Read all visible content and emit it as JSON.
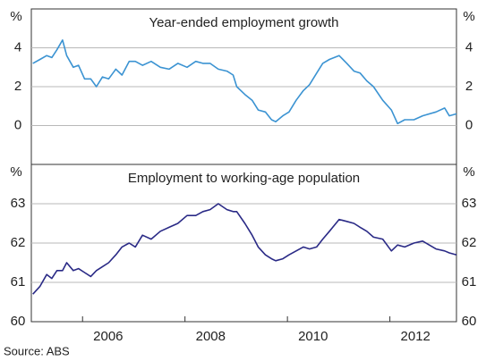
{
  "chart_data": [
    {
      "type": "line",
      "title": "Year-ended employment growth",
      "ylabel": "%",
      "color": "#3b93d2",
      "grid": true,
      "ylim": [
        -2,
        6
      ],
      "yticks": [
        0,
        2,
        4
      ],
      "xlim": [
        2005,
        2013.3
      ],
      "x": [
        2005.03,
        2005.17,
        2005.3,
        2005.4,
        2005.5,
        2005.61,
        2005.69,
        2005.82,
        2005.92,
        2006.04,
        2006.16,
        2006.27,
        2006.39,
        2006.51,
        2006.65,
        2006.77,
        2006.91,
        2007.03,
        2007.17,
        2007.34,
        2007.52,
        2007.69,
        2007.86,
        2008.04,
        2008.21,
        2008.35,
        2008.49,
        2008.65,
        2008.82,
        2008.94,
        2009.01,
        2009.17,
        2009.31,
        2009.43,
        2009.57,
        2009.69,
        2009.77,
        2009.91,
        2010.03,
        2010.17,
        2010.31,
        2010.43,
        2010.57,
        2010.69,
        2010.82,
        2011.01,
        2011.16,
        2011.3,
        2011.42,
        2011.55,
        2011.68,
        2011.86,
        2012.03,
        2012.15,
        2012.29,
        2012.47,
        2012.64,
        2012.9,
        2013.07,
        2013.16,
        2013.3
      ],
      "values": [
        3.2,
        3.4,
        3.6,
        3.5,
        3.9,
        4.4,
        3.6,
        3.0,
        3.1,
        2.4,
        2.4,
        2.0,
        2.5,
        2.4,
        2.9,
        2.6,
        3.3,
        3.3,
        3.1,
        3.3,
        3.0,
        2.9,
        3.2,
        3.0,
        3.3,
        3.2,
        3.2,
        2.9,
        2.8,
        2.6,
        2.0,
        1.6,
        1.3,
        0.8,
        0.7,
        0.3,
        0.2,
        0.5,
        0.7,
        1.3,
        1.8,
        2.1,
        2.7,
        3.2,
        3.4,
        3.6,
        3.2,
        2.8,
        2.7,
        2.3,
        2.0,
        1.3,
        0.8,
        0.1,
        0.3,
        0.3,
        0.5,
        0.7,
        0.9,
        0.5,
        0.6
      ]
    },
    {
      "type": "line",
      "title": "Employment to working-age population",
      "ylabel": "%",
      "color": "#2a2a86",
      "grid": true,
      "ylim": [
        60,
        64
      ],
      "yticks": [
        60,
        61,
        62,
        63
      ],
      "xlim": [
        2005,
        2013.3
      ],
      "xticks": [
        2006,
        2008,
        2010,
        2012
      ],
      "x": [
        2005.03,
        2005.17,
        2005.3,
        2005.4,
        2005.5,
        2005.61,
        2005.69,
        2005.82,
        2005.92,
        2006.04,
        2006.16,
        2006.27,
        2006.39,
        2006.51,
        2006.65,
        2006.77,
        2006.91,
        2007.03,
        2007.17,
        2007.34,
        2007.52,
        2007.69,
        2007.86,
        2008.04,
        2008.21,
        2008.35,
        2008.49,
        2008.65,
        2008.82,
        2008.94,
        2009.01,
        2009.17,
        2009.31,
        2009.43,
        2009.57,
        2009.69,
        2009.77,
        2009.91,
        2010.03,
        2010.17,
        2010.31,
        2010.43,
        2010.57,
        2010.69,
        2010.82,
        2011.01,
        2011.16,
        2011.3,
        2011.42,
        2011.55,
        2011.68,
        2011.86,
        2012.03,
        2012.15,
        2012.29,
        2012.47,
        2012.64,
        2012.9,
        2013.07,
        2013.16,
        2013.3
      ],
      "values": [
        60.7,
        60.9,
        61.2,
        61.1,
        61.3,
        61.3,
        61.5,
        61.3,
        61.35,
        61.25,
        61.15,
        61.3,
        61.4,
        61.5,
        61.7,
        61.9,
        62.0,
        61.9,
        62.2,
        62.1,
        62.3,
        62.4,
        62.5,
        62.7,
        62.7,
        62.8,
        62.85,
        63.0,
        62.85,
        62.8,
        62.8,
        62.5,
        62.2,
        61.9,
        61.7,
        61.6,
        61.55,
        61.6,
        61.7,
        61.8,
        61.9,
        61.85,
        61.9,
        62.1,
        62.3,
        62.6,
        62.55,
        62.5,
        62.4,
        62.3,
        62.15,
        62.1,
        61.8,
        61.95,
        61.9,
        62.0,
        62.05,
        61.85,
        61.8,
        61.75,
        61.7
      ]
    }
  ],
  "source": "Source: ABS"
}
